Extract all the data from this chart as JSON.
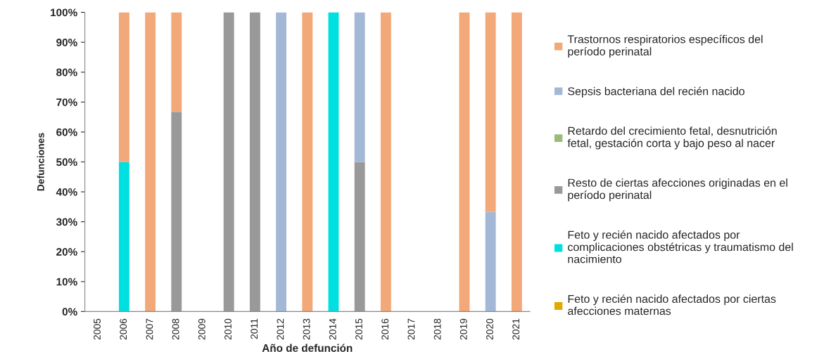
{
  "chart_data": {
    "type": "bar",
    "stacked": true,
    "xlabel": "Año de defunción",
    "ylabel": "Defunciones",
    "categories": [
      "2005",
      "2006",
      "2007",
      "2008",
      "2009",
      "2010",
      "2011",
      "2012",
      "2013",
      "2014",
      "2015",
      "2016",
      "2017",
      "2018",
      "2019",
      "2020",
      "2021"
    ],
    "series": [
      {
        "name": "Feto y recién nacido afectados por ciertas afecciones maternas",
        "color": "#e0a800",
        "values": [
          0,
          0,
          0,
          0,
          0,
          0,
          0,
          0,
          0,
          0,
          0,
          0,
          0,
          0,
          0,
          0,
          0
        ]
      },
      {
        "name": "Feto y recién nacido afectados por complicaciones obstétricas y traumatismo del nacimiento",
        "color": "#00e0e0",
        "values": [
          0,
          50,
          0,
          0,
          0,
          0,
          0,
          0,
          0,
          100,
          0,
          0,
          0,
          0,
          0,
          0,
          0
        ]
      },
      {
        "name": "Resto de ciertas afecciones originadas en el período perinatal",
        "color": "#999999",
        "values": [
          0,
          0,
          0,
          66.7,
          0,
          100,
          100,
          0,
          0,
          0,
          50,
          0,
          0,
          0,
          0,
          0,
          0
        ]
      },
      {
        "name": "Retardo del crecimiento fetal, desnutrición fetal, gestación corta y bajo peso al nacer",
        "color": "#9bbb7a",
        "values": [
          0,
          0,
          0,
          0,
          0,
          0,
          0,
          0,
          0,
          0,
          0,
          0,
          0,
          0,
          0,
          0,
          0
        ]
      },
      {
        "name": "Sepsis bacteriana del recién nacido",
        "color": "#a3b8d6",
        "values": [
          0,
          0,
          0,
          0,
          0,
          0,
          0,
          100,
          0,
          0,
          50,
          0,
          0,
          0,
          0,
          33.3,
          0
        ]
      },
      {
        "name": "Trastornos respiratorios específicos del período perinatal",
        "color": "#f2a878",
        "values": [
          0,
          50,
          100,
          33.3,
          0,
          0,
          0,
          0,
          100,
          0,
          0,
          100,
          0,
          0,
          100,
          66.7,
          100
        ]
      }
    ],
    "ylim": [
      0,
      100
    ],
    "yticks": [
      {
        "value": 0,
        "label": "0%"
      },
      {
        "value": 10,
        "label": "10%"
      },
      {
        "value": 20,
        "label": "20%"
      },
      {
        "value": 30,
        "label": "30%"
      },
      {
        "value": 40,
        "label": "40%"
      },
      {
        "value": 50,
        "label": "50%"
      },
      {
        "value": 60,
        "label": "60%"
      },
      {
        "value": 70,
        "label": "70%"
      },
      {
        "value": 80,
        "label": "80%"
      },
      {
        "value": 90,
        "label": "90%"
      },
      {
        "value": 100,
        "label": "100%"
      }
    ],
    "grid": false,
    "legend": "right"
  }
}
